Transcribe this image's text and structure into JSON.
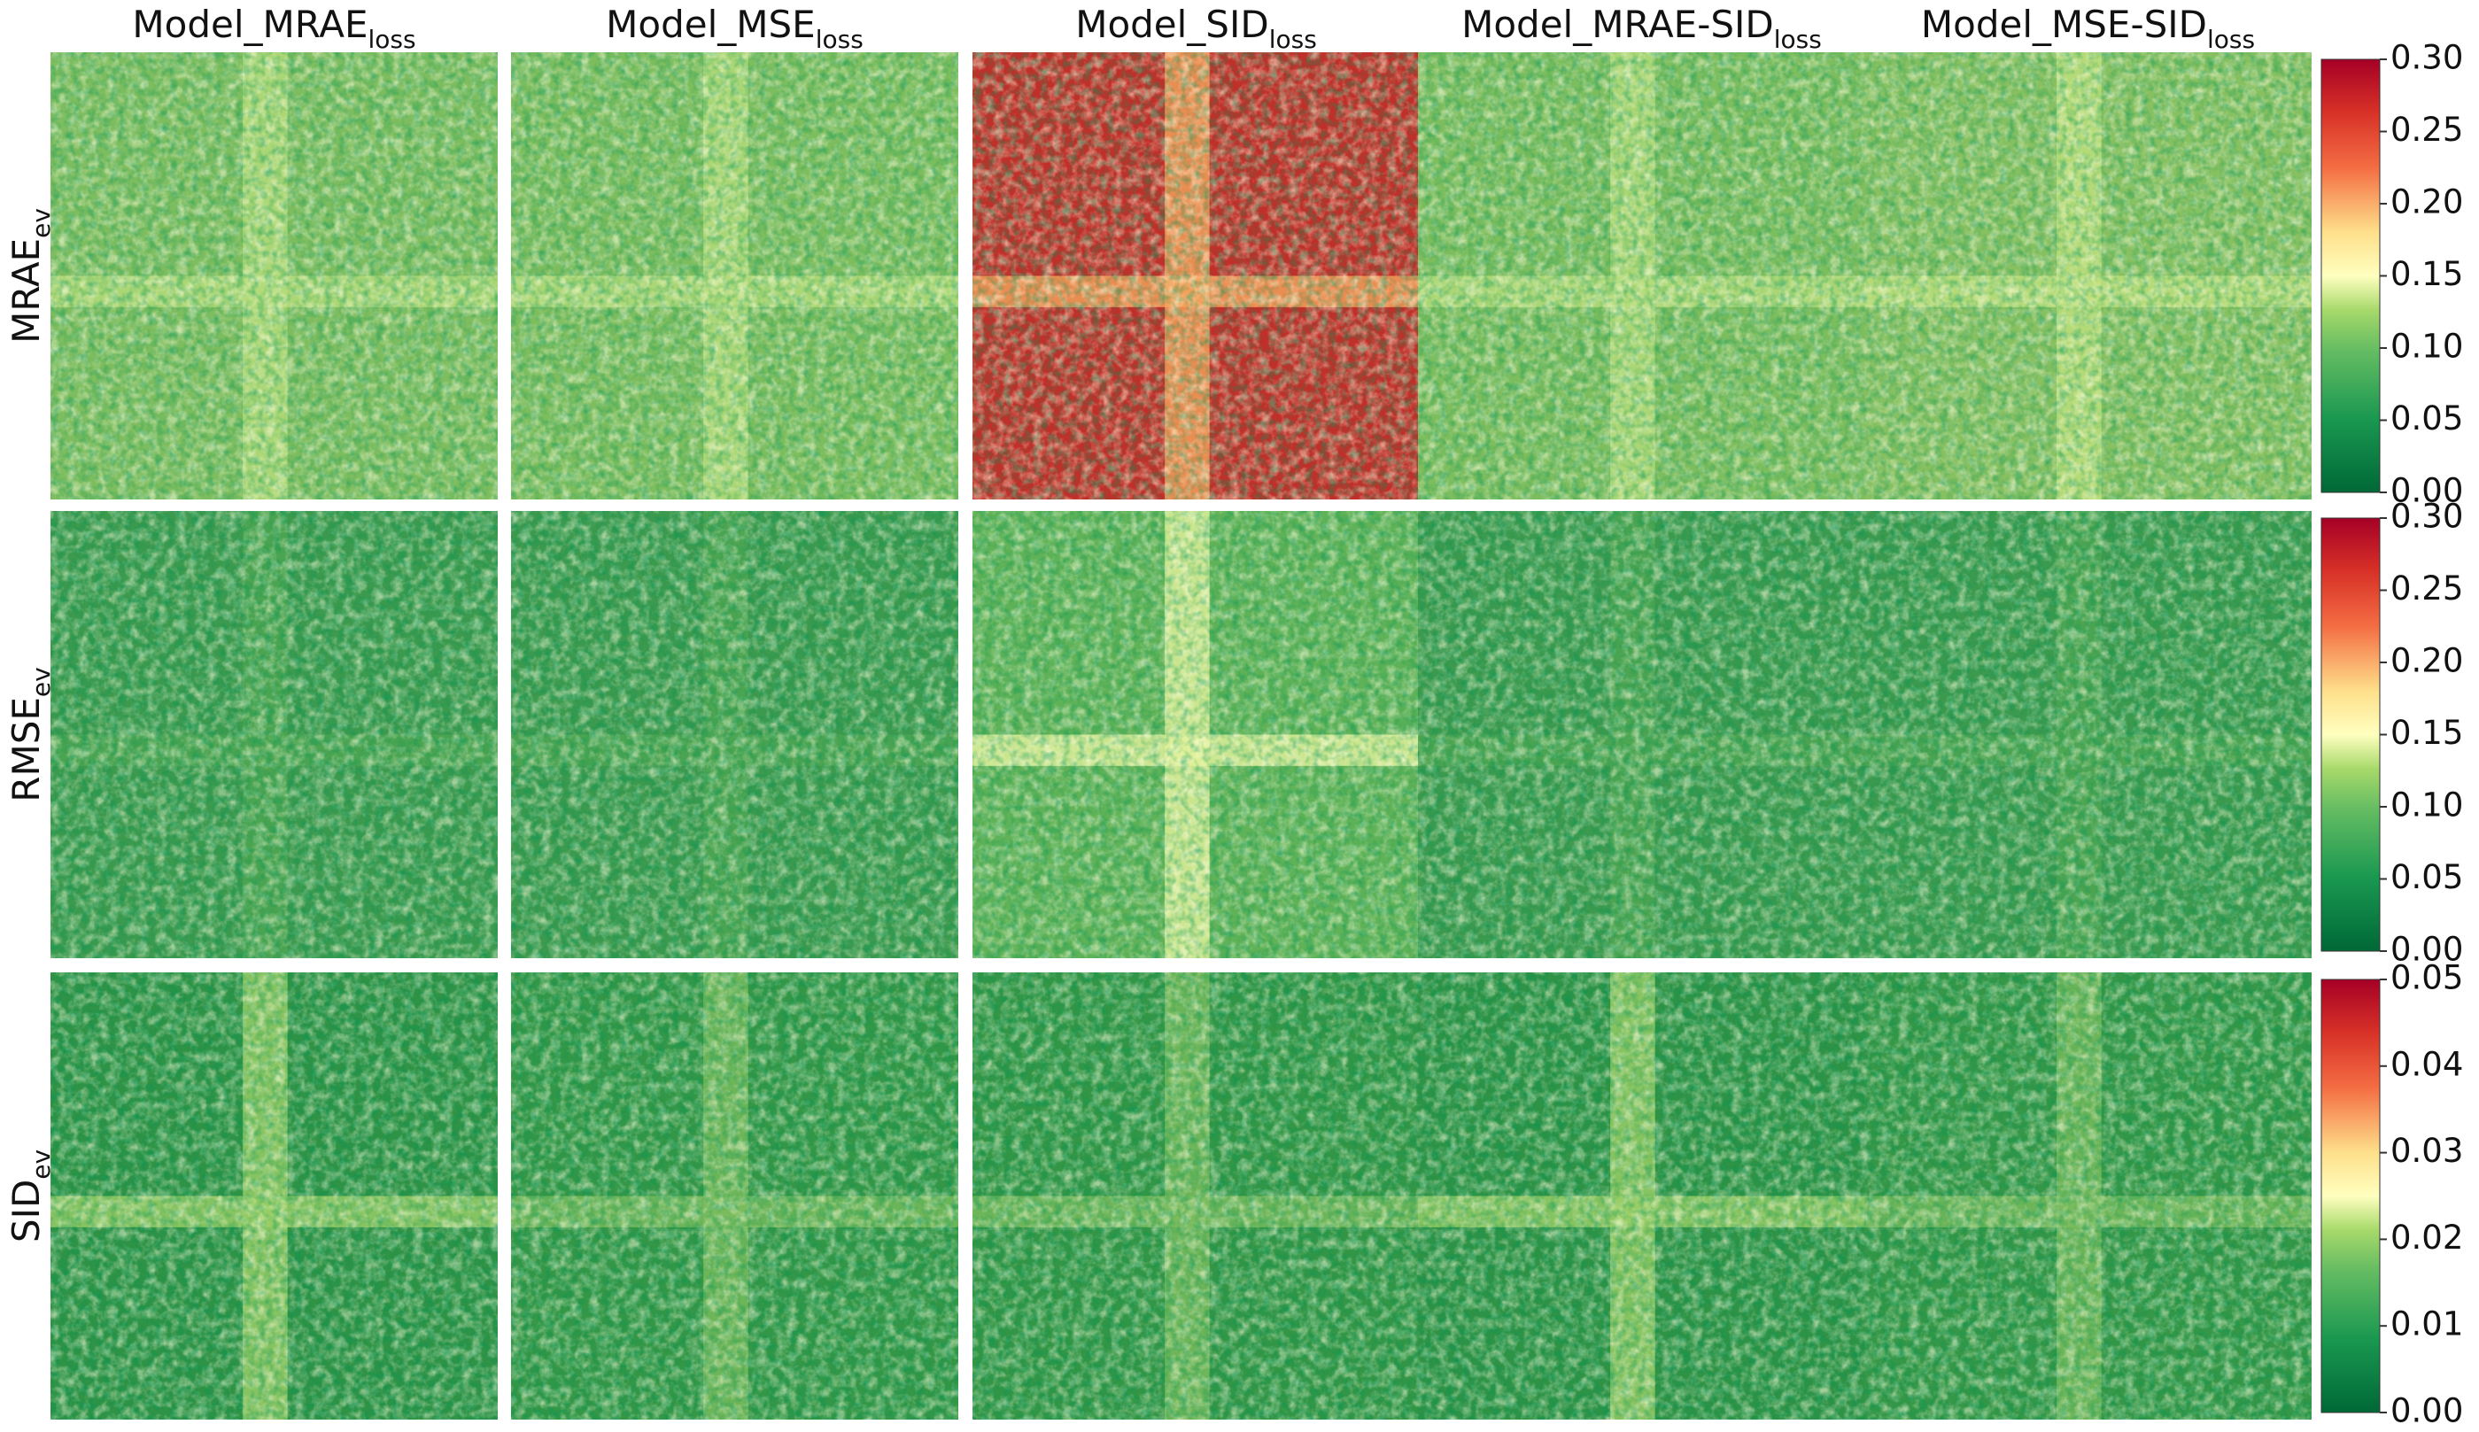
{
  "columns": [
    {
      "main": "Model_MRAE",
      "sub": "loss"
    },
    {
      "main": "Model_MSE",
      "sub": "loss"
    },
    {
      "main": "Model_SID",
      "sub": "loss"
    },
    {
      "main": "Model_MRAE-SID",
      "sub": "loss"
    },
    {
      "main": "Model_MSE-SID",
      "sub": "loss"
    }
  ],
  "rows": [
    {
      "main": "MRAE",
      "sub": "ev"
    },
    {
      "main": "RMSE",
      "sub": "ev"
    },
    {
      "main": "SID",
      "sub": "ev"
    }
  ],
  "colorbars": [
    {
      "ticks": [
        "0.00",
        "0.05",
        "0.10",
        "0.15",
        "0.20",
        "0.25",
        "0.30"
      ]
    },
    {
      "ticks": [
        "0.00",
        "0.05",
        "0.10",
        "0.15",
        "0.20",
        "0.25",
        "0.30"
      ]
    },
    {
      "ticks": [
        "0.00",
        "0.01",
        "0.02",
        "0.03",
        "0.04",
        "0.05"
      ]
    }
  ]
}
